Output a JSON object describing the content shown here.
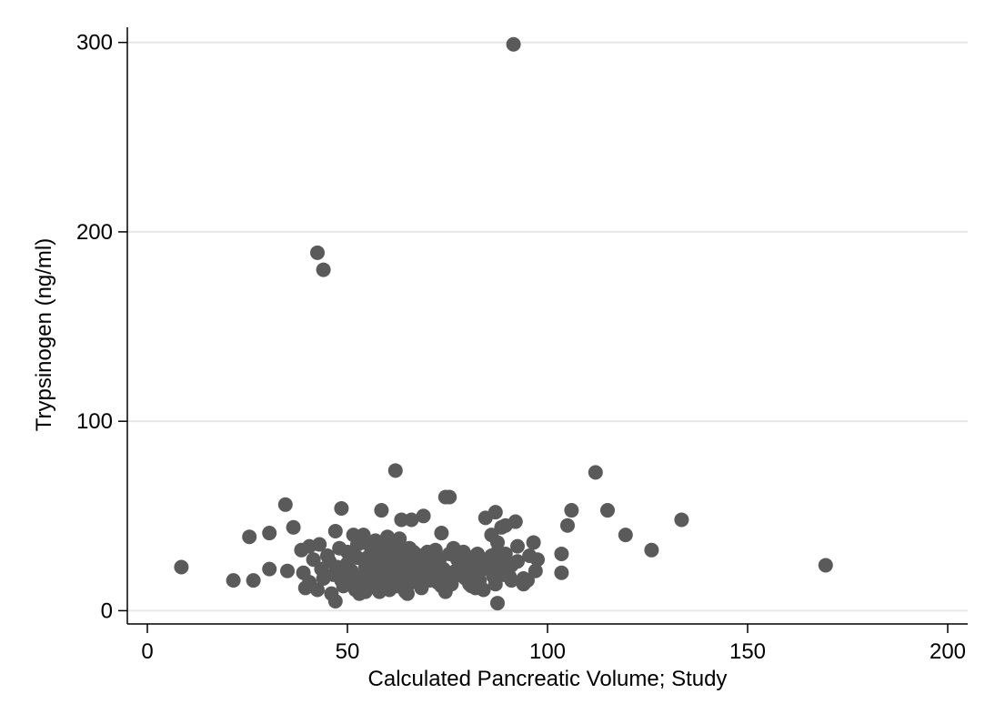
{
  "chart_data": {
    "type": "scatter",
    "xlabel": "Calculated Pancreatic Volume; Study",
    "ylabel": "Trypsinogen (ng/ml)",
    "xlim": [
      -5,
      205
    ],
    "ylim": [
      -7,
      308
    ],
    "xticks": [
      0,
      50,
      100,
      150,
      200
    ],
    "yticks": [
      0,
      100,
      200,
      300
    ],
    "grid": "horizontal",
    "colors": {
      "marker": "#5a5a5a",
      "grid": "#e6e6e6",
      "axis": "#000000"
    },
    "points": [
      [
        91.5,
        299
      ],
      [
        42.5,
        189
      ],
      [
        44,
        180
      ],
      [
        62,
        74
      ],
      [
        112,
        73
      ],
      [
        74.5,
        60
      ],
      [
        75.5,
        60
      ],
      [
        34.5,
        56
      ],
      [
        48.5,
        54
      ],
      [
        58.5,
        53
      ],
      [
        87,
        52
      ],
      [
        106,
        53
      ],
      [
        115,
        53
      ],
      [
        69,
        50
      ],
      [
        84.5,
        49
      ],
      [
        63.5,
        48
      ],
      [
        66,
        48
      ],
      [
        133.5,
        48
      ],
      [
        92,
        47
      ],
      [
        89.5,
        45
      ],
      [
        88.5,
        44
      ],
      [
        105,
        45
      ],
      [
        36.5,
        44
      ],
      [
        47,
        42
      ],
      [
        73.5,
        41
      ],
      [
        30.5,
        41
      ],
      [
        51.5,
        40
      ],
      [
        54,
        40
      ],
      [
        86,
        40
      ],
      [
        119.5,
        40
      ],
      [
        25.5,
        39
      ],
      [
        60,
        39
      ],
      [
        63,
        38
      ],
      [
        87.5,
        36
      ],
      [
        96.5,
        36
      ],
      [
        43,
        35
      ],
      [
        52.5,
        35
      ],
      [
        56.5,
        34
      ],
      [
        92.5,
        34
      ],
      [
        40.5,
        34
      ],
      [
        76.5,
        33
      ],
      [
        72,
        32
      ],
      [
        62.5,
        32
      ],
      [
        126,
        32
      ],
      [
        38.5,
        32
      ],
      [
        50,
        31
      ],
      [
        103.5,
        30
      ],
      [
        66.5,
        31
      ],
      [
        95.5,
        29
      ],
      [
        45,
        29
      ],
      [
        55,
        28
      ],
      [
        80.5,
        28
      ],
      [
        97.5,
        27
      ],
      [
        57,
        26
      ],
      [
        88.5,
        26
      ],
      [
        68.5,
        26
      ],
      [
        92.5,
        26
      ],
      [
        169.5,
        24
      ],
      [
        8.5,
        23
      ],
      [
        60.5,
        24
      ],
      [
        83,
        24
      ],
      [
        47.5,
        23
      ],
      [
        72,
        22
      ],
      [
        65.5,
        22
      ],
      [
        30.5,
        22
      ],
      [
        35,
        21
      ],
      [
        56,
        20
      ],
      [
        76.5,
        19
      ],
      [
        103.5,
        20
      ],
      [
        97,
        21
      ],
      [
        39,
        20
      ],
      [
        62,
        19
      ],
      [
        52,
        18
      ],
      [
        66.5,
        18
      ],
      [
        58.5,
        17
      ],
      [
        79.5,
        17
      ],
      [
        86.5,
        18
      ],
      [
        44,
        17
      ],
      [
        40.5,
        15
      ],
      [
        21.5,
        16
      ],
      [
        26.5,
        16
      ],
      [
        95,
        16
      ],
      [
        91,
        16
      ],
      [
        72.5,
        15
      ],
      [
        61.5,
        14
      ],
      [
        94,
        14
      ],
      [
        87,
        14
      ],
      [
        53,
        13
      ],
      [
        59,
        13
      ],
      [
        49,
        13
      ],
      [
        39.5,
        12
      ],
      [
        68.5,
        12
      ],
      [
        74.5,
        10
      ],
      [
        58,
        10
      ],
      [
        81,
        13
      ],
      [
        42.5,
        11
      ],
      [
        64.5,
        10
      ],
      [
        54.5,
        10
      ],
      [
        46,
        9
      ],
      [
        53,
        9
      ],
      [
        65,
        9
      ],
      [
        84,
        11
      ],
      [
        47,
        5
      ],
      [
        87.5,
        4
      ],
      [
        55,
        25
      ],
      [
        57.5,
        27
      ],
      [
        59,
        29
      ],
      [
        60.5,
        30
      ],
      [
        61,
        33
      ],
      [
        62.5,
        28
      ],
      [
        63.5,
        26
      ],
      [
        64,
        23
      ],
      [
        65,
        30
      ],
      [
        66,
        27
      ],
      [
        67,
        24
      ],
      [
        68,
        21
      ],
      [
        69,
        28
      ],
      [
        70,
        25
      ],
      [
        71,
        19
      ],
      [
        72.5,
        17
      ],
      [
        73,
        27
      ],
      [
        74,
        22
      ],
      [
        75,
        16
      ],
      [
        76,
        14
      ],
      [
        77,
        21
      ],
      [
        78,
        24
      ],
      [
        79,
        18
      ],
      [
        80,
        22
      ],
      [
        81,
        26
      ],
      [
        82,
        20
      ],
      [
        83,
        16
      ],
      [
        84,
        27
      ],
      [
        85,
        22
      ],
      [
        86,
        29
      ],
      [
        87.5,
        31
      ],
      [
        88,
        22
      ],
      [
        89,
        19
      ],
      [
        90,
        21
      ],
      [
        91,
        24
      ],
      [
        56,
        31
      ],
      [
        57,
        22
      ],
      [
        58,
        19
      ],
      [
        59,
        35
      ],
      [
        60,
        26
      ],
      [
        61,
        21
      ],
      [
        61.5,
        17
      ],
      [
        62,
        24
      ],
      [
        63,
        20
      ],
      [
        63,
        35
      ],
      [
        64,
        29
      ],
      [
        64.5,
        18
      ],
      [
        65.5,
        33
      ],
      [
        66,
        15
      ],
      [
        67,
        30
      ],
      [
        68,
        17
      ],
      [
        69,
        20
      ],
      [
        70,
        31
      ],
      [
        71,
        24
      ],
      [
        72,
        28
      ],
      [
        73.5,
        13
      ],
      [
        50,
        25
      ],
      [
        51,
        21
      ],
      [
        52.5,
        28
      ],
      [
        53.5,
        17
      ],
      [
        54.5,
        23
      ],
      [
        55.5,
        19
      ],
      [
        56.5,
        14
      ],
      [
        57.5,
        12
      ],
      [
        58.5,
        31
      ],
      [
        59.5,
        15
      ],
      [
        60.5,
        11
      ],
      [
        61.5,
        36
      ],
      [
        62.5,
        13
      ],
      [
        63.5,
        16
      ],
      [
        45.5,
        26
      ],
      [
        46.5,
        19
      ],
      [
        48,
        33
      ],
      [
        49.5,
        20
      ],
      [
        51,
        15
      ],
      [
        52,
        11
      ],
      [
        55,
        15
      ],
      [
        57,
        37
      ],
      [
        60,
        20
      ],
      [
        61,
        14
      ],
      [
        64,
        12
      ],
      [
        66.5,
        21
      ],
      [
        68.5,
        29
      ],
      [
        70.5,
        16
      ],
      [
        75.5,
        30
      ],
      [
        77.5,
        27
      ],
      [
        79,
        31
      ],
      [
        80.5,
        14
      ],
      [
        82.5,
        30
      ],
      [
        85.5,
        25
      ],
      [
        89.5,
        30
      ],
      [
        94,
        17
      ],
      [
        41.5,
        27
      ],
      [
        43.5,
        22
      ],
      [
        48.5,
        16
      ],
      [
        54,
        36
      ],
      [
        58,
        24
      ],
      [
        65.5,
        25
      ],
      [
        67.5,
        19
      ],
      [
        71.5,
        29
      ],
      [
        74,
        18
      ],
      [
        78.5,
        20
      ],
      [
        82,
        12
      ],
      [
        86,
        21
      ],
      [
        90.5,
        18
      ]
    ]
  }
}
